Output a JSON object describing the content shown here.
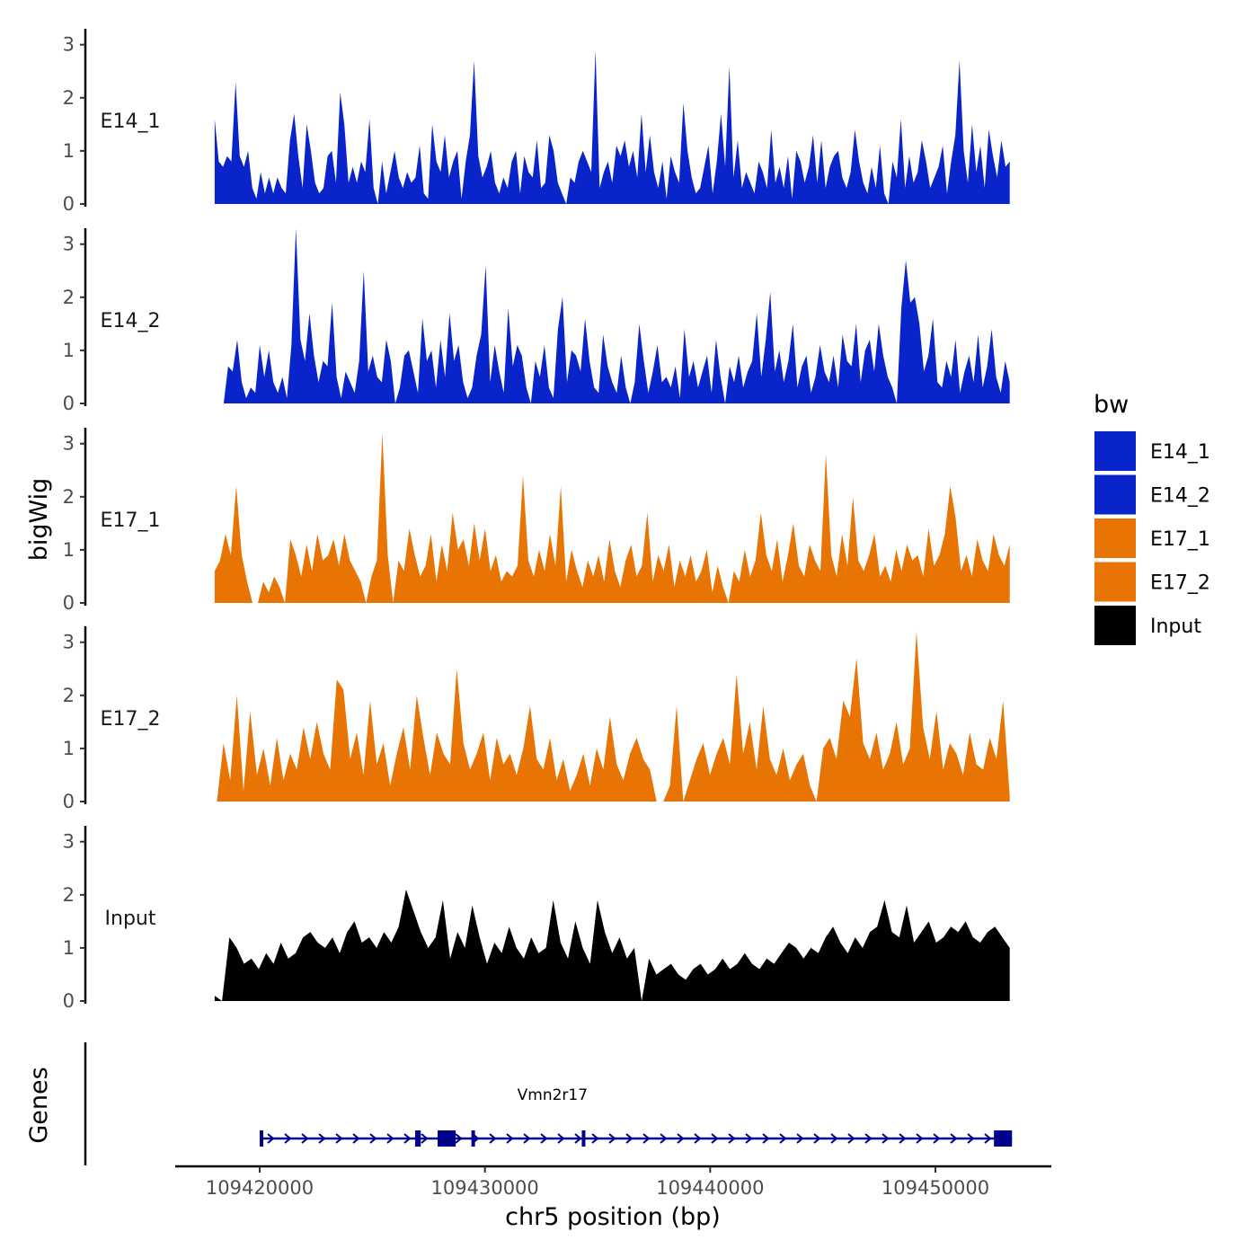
{
  "chart_data": {
    "type": "area",
    "xlabel": "chr5 position (bp)",
    "ylabel_tracks": "bigWig",
    "ylabel_genes": "Genes",
    "xlim": [
      109416000,
      109453500
    ],
    "ylim": [
      0,
      3.3
    ],
    "x_ticks": [
      109420000,
      109430000,
      109440000,
      109450000
    ],
    "x_tick_labels": [
      "109420000",
      "109430000",
      "109440000",
      "109450000"
    ],
    "y_ticks": [
      0,
      1,
      2,
      3
    ],
    "y_tick_labels": [
      "0",
      "1",
      "2",
      "3"
    ],
    "legend": {
      "title": "bw",
      "entries": [
        {
          "label": "E14_1",
          "color": "#0a24cc"
        },
        {
          "label": "E14_2",
          "color": "#0a24cc"
        },
        {
          "label": "E17_1",
          "color": "#e87404"
        },
        {
          "label": "E17_2",
          "color": "#e87404"
        },
        {
          "label": "Input",
          "color": "#000000"
        }
      ]
    },
    "series": [
      {
        "name": "E14_1",
        "color": "#0a24cc",
        "x_start": 109418000,
        "x_end": 109453300,
        "values": [
          1.6,
          0.8,
          0.7,
          0.9,
          0.8,
          2.3,
          0.9,
          0.7,
          1.0,
          0.3,
          0.1,
          0.6,
          0.2,
          0.5,
          0.2,
          0.5,
          0.3,
          0.2,
          1.2,
          1.7,
          0.9,
          0.3,
          1.5,
          1.0,
          0.4,
          0.2,
          0.3,
          0.9,
          1.0,
          0.4,
          2.1,
          1.5,
          0.4,
          0.7,
          0.4,
          0.8,
          0.6,
          1.6,
          0.3,
          0.0,
          0.8,
          0.2,
          0.6,
          1.0,
          0.5,
          0.3,
          0.6,
          0.4,
          0.5,
          1.1,
          0.2,
          0.1,
          1.5,
          0.8,
          0.6,
          1.3,
          0.5,
          0.8,
          1.0,
          0.1,
          0.8,
          1.3,
          2.7,
          0.9,
          0.5,
          0.7,
          1.0,
          0.4,
          0.2,
          0.5,
          0.3,
          0.8,
          1.0,
          0.2,
          0.9,
          0.6,
          0.5,
          1.2,
          0.3,
          0.4,
          1.3,
          1.0,
          0.4,
          0.2,
          0.0,
          0.5,
          0.4,
          0.8,
          1.0,
          0.8,
          0.6,
          2.9,
          0.3,
          0.6,
          0.8,
          0.4,
          1.1,
          0.9,
          1.2,
          0.7,
          1.0,
          0.5,
          1.7,
          0.6,
          1.3,
          0.6,
          0.3,
          0.8,
          0.1,
          0.9,
          0.6,
          0.4,
          1.9,
          1.0,
          0.5,
          0.2,
          0.3,
          0.7,
          1.1,
          0.2,
          0.8,
          1.7,
          0.7,
          2.6,
          0.5,
          1.2,
          0.3,
          0.6,
          0.4,
          0.2,
          0.8,
          0.6,
          0.3,
          1.4,
          0.4,
          0.7,
          0.3,
          0.9,
          0.1,
          1.0,
          0.8,
          0.4,
          0.7,
          1.3,
          0.4,
          1.2,
          0.3,
          0.7,
          0.9,
          1.0,
          0.5,
          0.3,
          0.6,
          1.4,
          0.8,
          0.4,
          0.2,
          0.7,
          0.3,
          1.1,
          0.2,
          0.0,
          0.8,
          0.5,
          1.6,
          0.3,
          0.9,
          0.4,
          0.6,
          1.2,
          0.8,
          0.3,
          0.5,
          0.7,
          1.1,
          0.2,
          0.8,
          1.3,
          2.7,
          1.0,
          0.4,
          1.5,
          0.6,
          1.1,
          0.3,
          1.4,
          0.9,
          0.5,
          1.2,
          0.7,
          0.8
        ]
      },
      {
        "name": "E14_2",
        "color": "#0a24cc",
        "x_start": 109418400,
        "x_end": 109453300,
        "values": [
          0.0,
          0.7,
          0.6,
          1.2,
          0.4,
          0.1,
          0.3,
          0.2,
          1.1,
          0.5,
          1.0,
          0.4,
          0.2,
          0.5,
          0.1,
          1.1,
          3.3,
          1.2,
          0.8,
          1.7,
          0.9,
          0.4,
          0.8,
          0.7,
          1.9,
          0.5,
          0.1,
          0.6,
          0.4,
          0.2,
          0.8,
          2.5,
          0.6,
          0.9,
          0.5,
          0.4,
          1.2,
          0.8,
          0.0,
          0.3,
          0.9,
          1.0,
          0.6,
          0.2,
          1.6,
          0.8,
          1.0,
          0.3,
          1.2,
          0.5,
          1.7,
          0.8,
          1.1,
          0.4,
          0.1,
          0.3,
          0.9,
          1.3,
          2.6,
          0.4,
          1.1,
          0.6,
          0.2,
          1.8,
          0.7,
          1.1,
          0.9,
          0.3,
          0.0,
          0.8,
          0.5,
          1.1,
          0.3,
          0.1,
          1.4,
          2.0,
          0.4,
          1.0,
          0.9,
          0.6,
          1.6,
          0.8,
          0.3,
          0.2,
          1.3,
          0.7,
          0.4,
          0.2,
          0.9,
          0.3,
          0.0,
          0.4,
          1.5,
          0.8,
          0.2,
          0.6,
          1.1,
          0.4,
          0.5,
          0.3,
          0.7,
          0.1,
          1.4,
          0.5,
          0.8,
          0.3,
          0.6,
          0.9,
          0.2,
          1.2,
          0.5,
          0.0,
          0.7,
          0.4,
          0.9,
          0.3,
          0.6,
          0.8,
          1.7,
          0.5,
          1.2,
          2.1,
          0.6,
          1.0,
          0.4,
          0.8,
          1.5,
          0.3,
          0.7,
          0.9,
          0.2,
          0.5,
          1.1,
          0.6,
          0.4,
          0.9,
          0.3,
          1.3,
          0.8,
          0.7,
          1.5,
          0.4,
          1.0,
          1.2,
          0.6,
          1.5,
          0.9,
          0.5,
          0.3,
          0.0,
          1.8,
          2.7,
          1.9,
          2.0,
          1.5,
          0.6,
          0.9,
          1.6,
          0.4,
          0.3,
          0.8,
          0.5,
          1.2,
          0.2,
          0.6,
          0.9,
          0.4,
          1.3,
          0.3,
          0.7,
          1.4,
          0.5,
          0.2,
          0.8,
          0.4
        ]
      },
      {
        "name": "E17_1",
        "color": "#e87404",
        "x_start": 109418000,
        "x_end": 109453300,
        "values": [
          0.6,
          0.8,
          1.3,
          0.9,
          2.2,
          0.9,
          0.4,
          0.0,
          0.0,
          0.4,
          0.2,
          0.5,
          0.3,
          0.0,
          1.2,
          0.9,
          0.5,
          1.1,
          0.6,
          1.3,
          0.8,
          0.9,
          1.2,
          0.7,
          1.3,
          0.8,
          0.6,
          0.4,
          0.0,
          0.5,
          0.8,
          3.2,
          0.9,
          0.0,
          0.8,
          0.6,
          1.4,
          0.9,
          0.5,
          0.7,
          1.3,
          0.4,
          1.1,
          0.6,
          1.7,
          1.0,
          1.2,
          0.7,
          1.5,
          0.8,
          1.4,
          0.6,
          0.9,
          0.4,
          0.6,
          0.5,
          0.7,
          2.4,
          0.8,
          0.5,
          1.0,
          0.6,
          1.3,
          0.7,
          2.2,
          0.4,
          1.0,
          0.6,
          0.3,
          0.8,
          0.5,
          0.9,
          0.4,
          1.2,
          0.6,
          0.3,
          0.8,
          1.1,
          0.5,
          0.7,
          1.7,
          0.4,
          0.9,
          0.6,
          1.1,
          0.3,
          0.8,
          0.5,
          0.9,
          0.4,
          0.6,
          1.0,
          0.2,
          0.7,
          0.3,
          0.0,
          0.6,
          0.4,
          1.0,
          0.5,
          0.8,
          1.7,
          0.9,
          0.6,
          1.2,
          0.4,
          0.9,
          1.5,
          0.7,
          0.5,
          1.1,
          0.8,
          0.6,
          2.8,
          0.9,
          0.5,
          1.3,
          0.7,
          2.0,
          0.8,
          0.6,
          0.9,
          1.3,
          0.5,
          0.7,
          0.4,
          1.0,
          0.6,
          1.1,
          0.8,
          0.9,
          0.5,
          1.4,
          0.7,
          0.9,
          1.3,
          2.2,
          1.6,
          0.6,
          0.9,
          0.5,
          1.2,
          0.8,
          0.6,
          1.3,
          0.9,
          0.7,
          1.1
        ]
      },
      {
        "name": "E17_2",
        "color": "#e87404",
        "x_start": 109418100,
        "x_end": 109453300,
        "values": [
          0.0,
          1.1,
          0.4,
          2.0,
          0.2,
          1.7,
          0.5,
          1.0,
          0.3,
          1.2,
          0.4,
          0.9,
          0.6,
          1.4,
          0.8,
          1.5,
          0.9,
          0.6,
          2.3,
          2.1,
          0.8,
          1.3,
          0.5,
          1.9,
          0.7,
          1.1,
          0.3,
          0.9,
          1.4,
          0.6,
          2.0,
          1.2,
          0.5,
          1.3,
          0.9,
          0.7,
          2.5,
          1.1,
          0.6,
          0.9,
          1.3,
          0.4,
          1.2,
          0.7,
          0.9,
          0.5,
          1.0,
          1.8,
          0.8,
          0.6,
          1.2,
          0.4,
          0.8,
          0.2,
          0.5,
          0.9,
          0.3,
          1.0,
          0.6,
          1.6,
          0.7,
          0.4,
          0.9,
          1.2,
          0.8,
          0.6,
          0.0,
          0.0,
          0.3,
          1.8,
          0.0,
          0.4,
          0.8,
          1.1,
          0.5,
          0.9,
          1.2,
          0.7,
          2.4,
          0.9,
          1.5,
          0.6,
          1.8,
          0.8,
          0.5,
          1.0,
          0.4,
          0.7,
          0.9,
          0.3,
          0.0,
          1.0,
          1.2,
          0.8,
          1.9,
          1.6,
          2.7,
          1.1,
          0.8,
          1.3,
          0.6,
          0.9,
          1.5,
          0.7,
          1.0,
          3.2,
          1.4,
          0.8,
          1.7,
          0.6,
          1.1,
          0.9,
          0.5,
          1.3,
          0.7,
          0.6,
          1.2,
          0.8,
          1.9,
          0.1
        ]
      },
      {
        "name": "Input",
        "color": "#000000",
        "x_start": 109418000,
        "x_end": 109453300,
        "values": [
          0.1,
          0.0,
          1.2,
          1.0,
          0.7,
          0.8,
          0.6,
          0.9,
          0.7,
          1.1,
          0.8,
          0.9,
          1.2,
          1.3,
          1.1,
          1.0,
          1.2,
          0.9,
          1.3,
          1.5,
          1.1,
          1.2,
          1.0,
          1.3,
          1.1,
          1.4,
          2.1,
          1.7,
          1.3,
          1.0,
          1.2,
          1.9,
          0.8,
          1.3,
          1.0,
          1.8,
          1.2,
          0.7,
          1.1,
          0.9,
          1.4,
          1.0,
          0.8,
          1.2,
          0.9,
          1.0,
          1.9,
          1.1,
          0.8,
          1.5,
          1.0,
          0.7,
          1.9,
          1.3,
          0.9,
          1.2,
          0.8,
          1.0,
          0.0,
          0.8,
          0.5,
          0.6,
          0.7,
          0.5,
          0.4,
          0.6,
          0.7,
          0.5,
          0.6,
          0.8,
          0.6,
          0.7,
          0.9,
          0.7,
          0.6,
          0.8,
          0.7,
          0.9,
          1.1,
          1.0,
          0.8,
          1.0,
          0.9,
          1.2,
          1.4,
          1.1,
          0.9,
          1.2,
          1.0,
          1.3,
          1.4,
          1.9,
          1.3,
          1.2,
          1.8,
          1.1,
          1.3,
          1.5,
          1.1,
          1.2,
          1.4,
          1.3,
          1.5,
          1.2,
          1.1,
          1.3,
          1.4,
          1.2,
          1.0
        ]
      }
    ],
    "genes": {
      "label": "Vmn2r17",
      "color": "#00008b",
      "strand": "+",
      "start": 109420000,
      "end": 109453400,
      "exons": [
        [
          109420000,
          109420150
        ],
        [
          109426900,
          109427150
        ],
        [
          109427900,
          109428700
        ],
        [
          109429400,
          109429550
        ],
        [
          109434300,
          109434400
        ],
        [
          109452600,
          109453400
        ]
      ]
    }
  }
}
